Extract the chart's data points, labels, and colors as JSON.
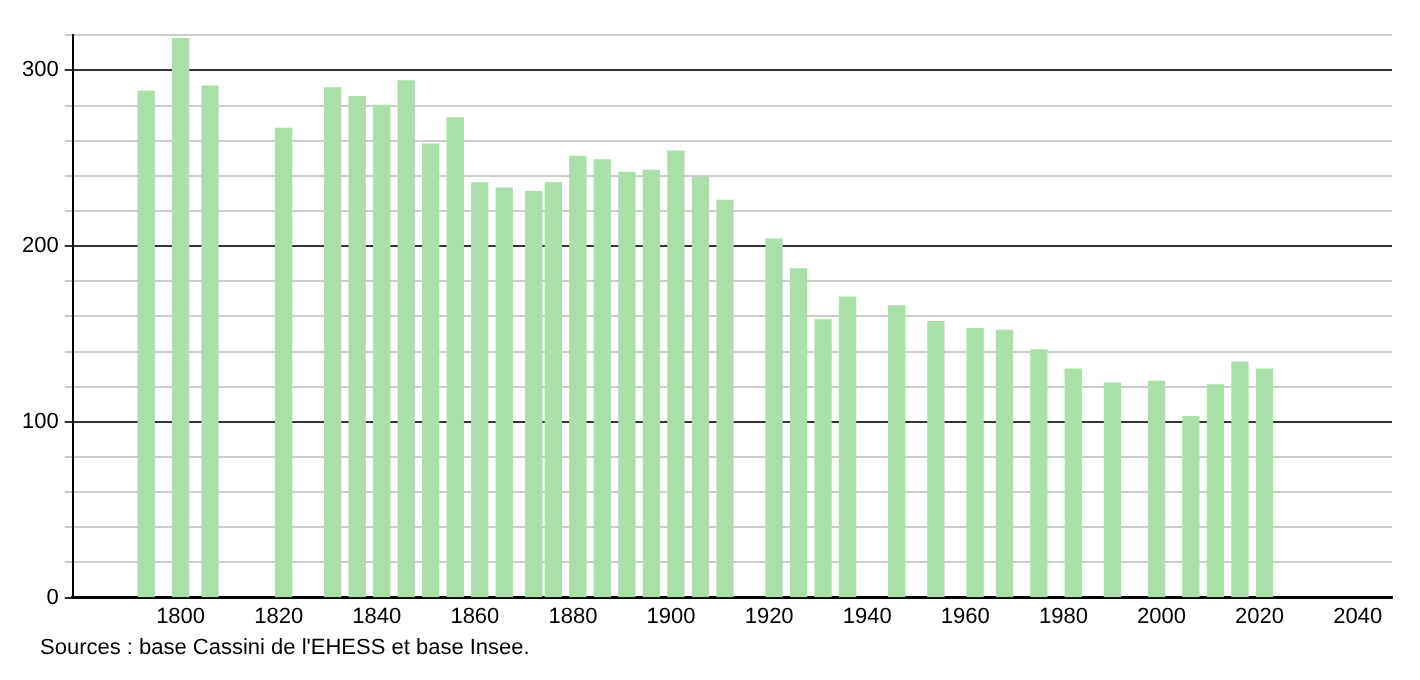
{
  "chart_data": {
    "type": "bar",
    "x": [
      1793,
      1800,
      1806,
      1821,
      1831,
      1836,
      1841,
      1846,
      1851,
      1856,
      1861,
      1866,
      1872,
      1876,
      1881,
      1886,
      1891,
      1896,
      1901,
      1906,
      1911,
      1921,
      1926,
      1931,
      1936,
      1946,
      1954,
      1962,
      1968,
      1975,
      1982,
      1990,
      1999,
      2006,
      2011,
      2016,
      2021
    ],
    "values": [
      288,
      318,
      291,
      267,
      290,
      285,
      280,
      294,
      258,
      273,
      236,
      233,
      231,
      236,
      251,
      249,
      242,
      243,
      254,
      239,
      226,
      204,
      187,
      158,
      171,
      166,
      157,
      153,
      152,
      141,
      130,
      122,
      123,
      103,
      121,
      134,
      130
    ],
    "color": "#a8e0a8",
    "xlim": [
      1778,
      2047
    ],
    "xticks": [
      1800,
      1820,
      1840,
      1860,
      1880,
      1900,
      1920,
      1940,
      1960,
      1980,
      2000,
      2020,
      2040
    ],
    "ylim": [
      0,
      320
    ],
    "yticks": [
      0,
      {
        "value": 20,
        "label": null
      },
      {
        "value": 40,
        "label": null
      },
      {
        "value": 60,
        "label": null
      },
      {
        "value": 80,
        "label": null
      },
      100,
      {
        "value": 120,
        "label": null
      },
      {
        "value": 140,
        "label": null
      },
      {
        "value": 160,
        "label": null
      },
      {
        "value": 180,
        "label": null
      },
      200,
      {
        "value": 220,
        "label": null
      },
      {
        "value": 240,
        "label": null
      },
      {
        "value": 260,
        "label": null
      },
      {
        "value": 280,
        "label": null
      },
      300,
      {
        "value": 320,
        "label": null
      }
    ],
    "grid": "y",
    "annotations": [
      "Sources : base Cassini de l'EHESS et base Insee."
    ]
  }
}
